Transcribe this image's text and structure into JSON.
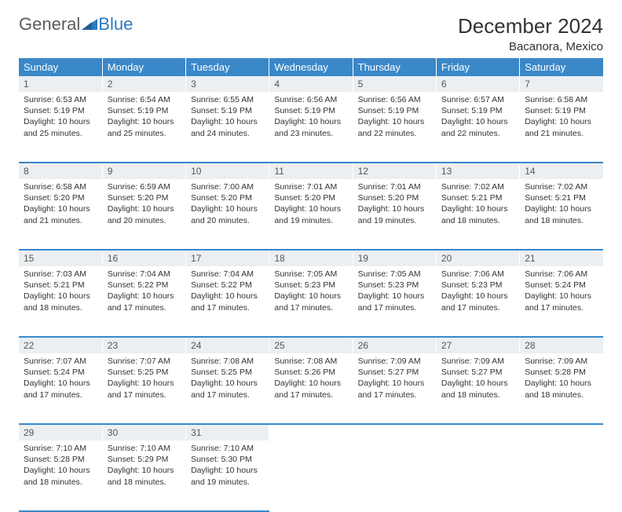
{
  "brand": {
    "word1": "General",
    "word2": "Blue"
  },
  "title": "December 2024",
  "location": "Bacanora, Mexico",
  "colors": {
    "header_bg": "#3a88c9",
    "header_text": "#ffffff",
    "daynum_bg": "#eceff1",
    "border": "#3a88c9",
    "logo_gray": "#5a5a5a",
    "logo_blue": "#2b7bbf"
  },
  "day_headers": [
    "Sunday",
    "Monday",
    "Tuesday",
    "Wednesday",
    "Thursday",
    "Friday",
    "Saturday"
  ],
  "weeks": [
    [
      {
        "n": "1",
        "sunrise": "Sunrise: 6:53 AM",
        "sunset": "Sunset: 5:19 PM",
        "dl1": "Daylight: 10 hours",
        "dl2": "and 25 minutes."
      },
      {
        "n": "2",
        "sunrise": "Sunrise: 6:54 AM",
        "sunset": "Sunset: 5:19 PM",
        "dl1": "Daylight: 10 hours",
        "dl2": "and 25 minutes."
      },
      {
        "n": "3",
        "sunrise": "Sunrise: 6:55 AM",
        "sunset": "Sunset: 5:19 PM",
        "dl1": "Daylight: 10 hours",
        "dl2": "and 24 minutes."
      },
      {
        "n": "4",
        "sunrise": "Sunrise: 6:56 AM",
        "sunset": "Sunset: 5:19 PM",
        "dl1": "Daylight: 10 hours",
        "dl2": "and 23 minutes."
      },
      {
        "n": "5",
        "sunrise": "Sunrise: 6:56 AM",
        "sunset": "Sunset: 5:19 PM",
        "dl1": "Daylight: 10 hours",
        "dl2": "and 22 minutes."
      },
      {
        "n": "6",
        "sunrise": "Sunrise: 6:57 AM",
        "sunset": "Sunset: 5:19 PM",
        "dl1": "Daylight: 10 hours",
        "dl2": "and 22 minutes."
      },
      {
        "n": "7",
        "sunrise": "Sunrise: 6:58 AM",
        "sunset": "Sunset: 5:19 PM",
        "dl1": "Daylight: 10 hours",
        "dl2": "and 21 minutes."
      }
    ],
    [
      {
        "n": "8",
        "sunrise": "Sunrise: 6:58 AM",
        "sunset": "Sunset: 5:20 PM",
        "dl1": "Daylight: 10 hours",
        "dl2": "and 21 minutes."
      },
      {
        "n": "9",
        "sunrise": "Sunrise: 6:59 AM",
        "sunset": "Sunset: 5:20 PM",
        "dl1": "Daylight: 10 hours",
        "dl2": "and 20 minutes."
      },
      {
        "n": "10",
        "sunrise": "Sunrise: 7:00 AM",
        "sunset": "Sunset: 5:20 PM",
        "dl1": "Daylight: 10 hours",
        "dl2": "and 20 minutes."
      },
      {
        "n": "11",
        "sunrise": "Sunrise: 7:01 AM",
        "sunset": "Sunset: 5:20 PM",
        "dl1": "Daylight: 10 hours",
        "dl2": "and 19 minutes."
      },
      {
        "n": "12",
        "sunrise": "Sunrise: 7:01 AM",
        "sunset": "Sunset: 5:20 PM",
        "dl1": "Daylight: 10 hours",
        "dl2": "and 19 minutes."
      },
      {
        "n": "13",
        "sunrise": "Sunrise: 7:02 AM",
        "sunset": "Sunset: 5:21 PM",
        "dl1": "Daylight: 10 hours",
        "dl2": "and 18 minutes."
      },
      {
        "n": "14",
        "sunrise": "Sunrise: 7:02 AM",
        "sunset": "Sunset: 5:21 PM",
        "dl1": "Daylight: 10 hours",
        "dl2": "and 18 minutes."
      }
    ],
    [
      {
        "n": "15",
        "sunrise": "Sunrise: 7:03 AM",
        "sunset": "Sunset: 5:21 PM",
        "dl1": "Daylight: 10 hours",
        "dl2": "and 18 minutes."
      },
      {
        "n": "16",
        "sunrise": "Sunrise: 7:04 AM",
        "sunset": "Sunset: 5:22 PM",
        "dl1": "Daylight: 10 hours",
        "dl2": "and 17 minutes."
      },
      {
        "n": "17",
        "sunrise": "Sunrise: 7:04 AM",
        "sunset": "Sunset: 5:22 PM",
        "dl1": "Daylight: 10 hours",
        "dl2": "and 17 minutes."
      },
      {
        "n": "18",
        "sunrise": "Sunrise: 7:05 AM",
        "sunset": "Sunset: 5:23 PM",
        "dl1": "Daylight: 10 hours",
        "dl2": "and 17 minutes."
      },
      {
        "n": "19",
        "sunrise": "Sunrise: 7:05 AM",
        "sunset": "Sunset: 5:23 PM",
        "dl1": "Daylight: 10 hours",
        "dl2": "and 17 minutes."
      },
      {
        "n": "20",
        "sunrise": "Sunrise: 7:06 AM",
        "sunset": "Sunset: 5:23 PM",
        "dl1": "Daylight: 10 hours",
        "dl2": "and 17 minutes."
      },
      {
        "n": "21",
        "sunrise": "Sunrise: 7:06 AM",
        "sunset": "Sunset: 5:24 PM",
        "dl1": "Daylight: 10 hours",
        "dl2": "and 17 minutes."
      }
    ],
    [
      {
        "n": "22",
        "sunrise": "Sunrise: 7:07 AM",
        "sunset": "Sunset: 5:24 PM",
        "dl1": "Daylight: 10 hours",
        "dl2": "and 17 minutes."
      },
      {
        "n": "23",
        "sunrise": "Sunrise: 7:07 AM",
        "sunset": "Sunset: 5:25 PM",
        "dl1": "Daylight: 10 hours",
        "dl2": "and 17 minutes."
      },
      {
        "n": "24",
        "sunrise": "Sunrise: 7:08 AM",
        "sunset": "Sunset: 5:25 PM",
        "dl1": "Daylight: 10 hours",
        "dl2": "and 17 minutes."
      },
      {
        "n": "25",
        "sunrise": "Sunrise: 7:08 AM",
        "sunset": "Sunset: 5:26 PM",
        "dl1": "Daylight: 10 hours",
        "dl2": "and 17 minutes."
      },
      {
        "n": "26",
        "sunrise": "Sunrise: 7:09 AM",
        "sunset": "Sunset: 5:27 PM",
        "dl1": "Daylight: 10 hours",
        "dl2": "and 17 minutes."
      },
      {
        "n": "27",
        "sunrise": "Sunrise: 7:09 AM",
        "sunset": "Sunset: 5:27 PM",
        "dl1": "Daylight: 10 hours",
        "dl2": "and 18 minutes."
      },
      {
        "n": "28",
        "sunrise": "Sunrise: 7:09 AM",
        "sunset": "Sunset: 5:28 PM",
        "dl1": "Daylight: 10 hours",
        "dl2": "and 18 minutes."
      }
    ],
    [
      {
        "n": "29",
        "sunrise": "Sunrise: 7:10 AM",
        "sunset": "Sunset: 5:28 PM",
        "dl1": "Daylight: 10 hours",
        "dl2": "and 18 minutes."
      },
      {
        "n": "30",
        "sunrise": "Sunrise: 7:10 AM",
        "sunset": "Sunset: 5:29 PM",
        "dl1": "Daylight: 10 hours",
        "dl2": "and 18 minutes."
      },
      {
        "n": "31",
        "sunrise": "Sunrise: 7:10 AM",
        "sunset": "Sunset: 5:30 PM",
        "dl1": "Daylight: 10 hours",
        "dl2": "and 19 minutes."
      },
      null,
      null,
      null,
      null
    ]
  ]
}
